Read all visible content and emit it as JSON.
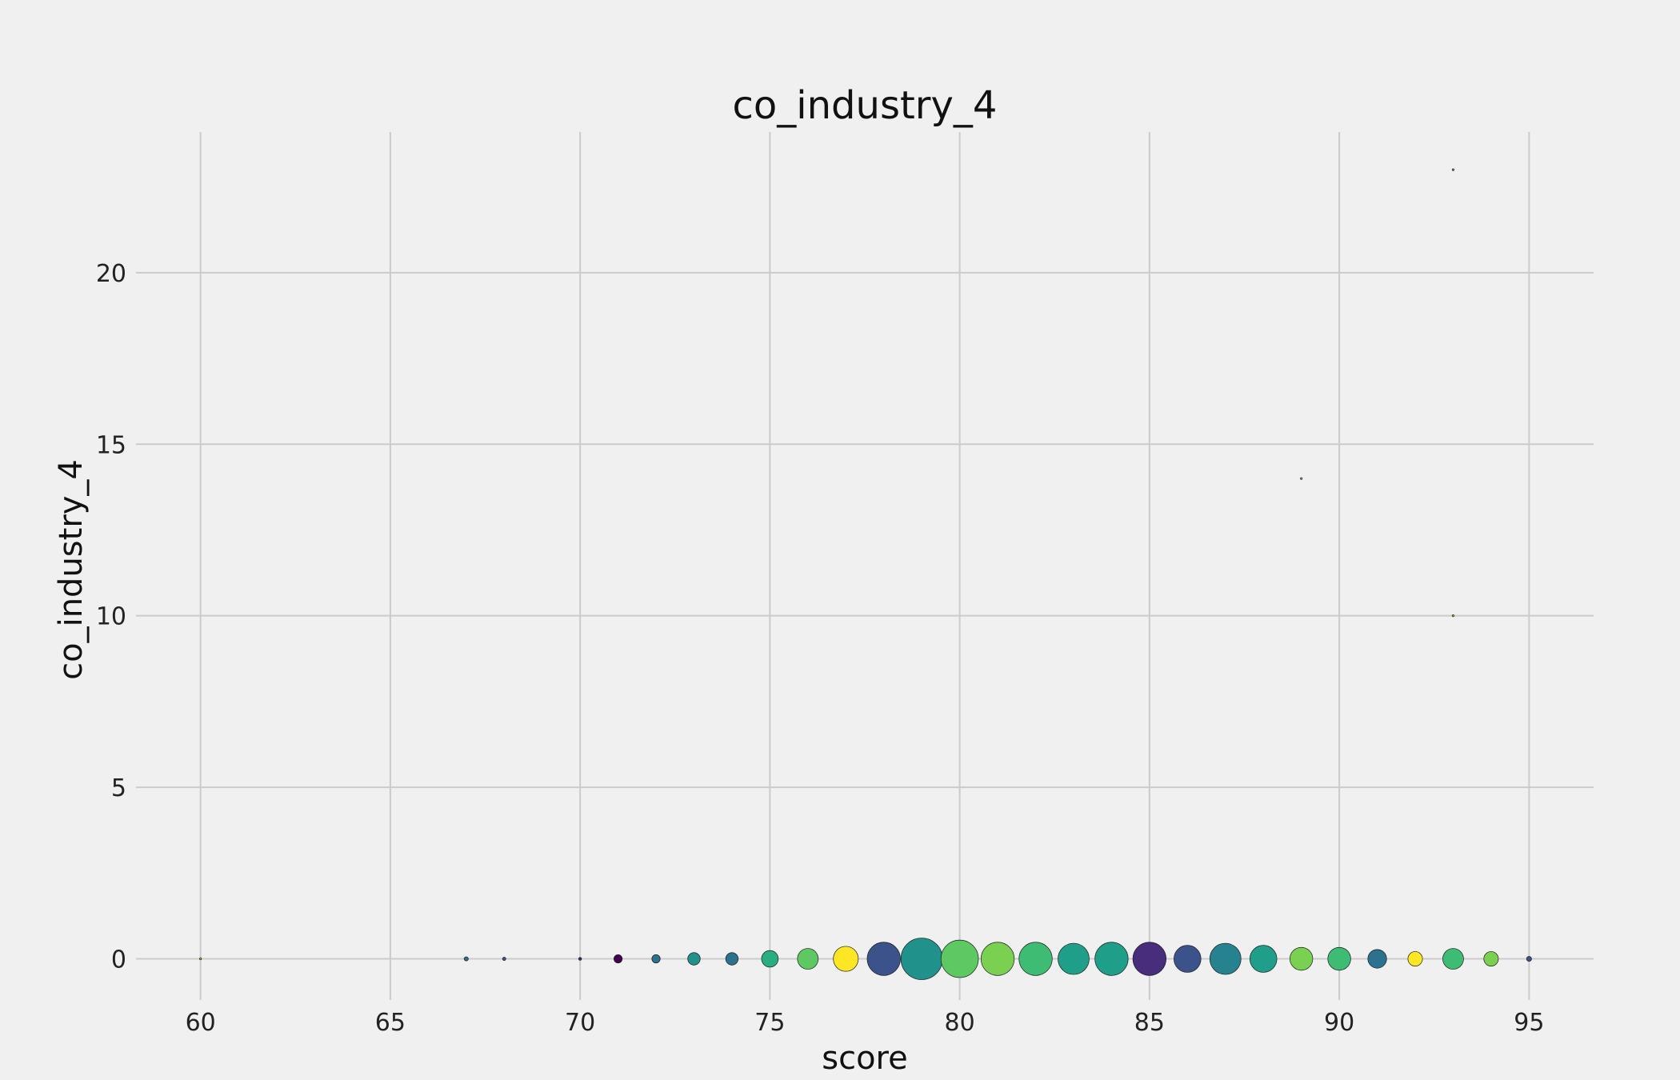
{
  "chart_data": {
    "type": "scatter",
    "title": "co_industry_4",
    "xlabel": "score",
    "ylabel": "co_industry_4",
    "xlim": [
      58.3,
      96.7
    ],
    "ylim": [
      -1.2,
      24.1
    ],
    "xticks": [
      60,
      65,
      70,
      75,
      80,
      85,
      90,
      95
    ],
    "yticks": [
      0,
      5,
      10,
      15,
      20
    ],
    "grid": true,
    "legend": "none",
    "points": [
      {
        "x": 60,
        "y": 0,
        "size": 0.2,
        "color": "#bddf26"
      },
      {
        "x": 67,
        "y": 0,
        "size": 1,
        "color": "#2c728e"
      },
      {
        "x": 68,
        "y": 0,
        "size": 0.8,
        "color": "#3b528b"
      },
      {
        "x": 70,
        "y": 0,
        "size": 0.7,
        "color": "#472d7b"
      },
      {
        "x": 71,
        "y": 0,
        "size": 2,
        "color": "#440154"
      },
      {
        "x": 72,
        "y": 0,
        "size": 2,
        "color": "#2c728e"
      },
      {
        "x": 73,
        "y": 0,
        "size": 3,
        "color": "#21918c"
      },
      {
        "x": 74,
        "y": 0,
        "size": 3,
        "color": "#2c728e"
      },
      {
        "x": 75,
        "y": 0,
        "size": 4,
        "color": "#28ae80"
      },
      {
        "x": 76,
        "y": 0,
        "size": 5,
        "color": "#5ec962"
      },
      {
        "x": 77,
        "y": 0,
        "size": 6,
        "color": "#fde725"
      },
      {
        "x": 78,
        "y": 0,
        "size": 8,
        "color": "#3b528b"
      },
      {
        "x": 79,
        "y": 0,
        "size": 10,
        "color": "#21918c"
      },
      {
        "x": 80,
        "y": 0,
        "size": 9,
        "color": "#5ec962"
      },
      {
        "x": 81,
        "y": 0,
        "size": 8,
        "color": "#7ad151"
      },
      {
        "x": 82,
        "y": 0,
        "size": 8,
        "color": "#3fbc73"
      },
      {
        "x": 83,
        "y": 0,
        "size": 7.5,
        "color": "#1f9e89"
      },
      {
        "x": 84,
        "y": 0,
        "size": 8,
        "color": "#1f9e89"
      },
      {
        "x": 85,
        "y": 0,
        "size": 8,
        "color": "#472d7b"
      },
      {
        "x": 86,
        "y": 0,
        "size": 6.5,
        "color": "#3b528b"
      },
      {
        "x": 87,
        "y": 0,
        "size": 7.5,
        "color": "#26828e"
      },
      {
        "x": 88,
        "y": 0,
        "size": 6.5,
        "color": "#1f9e89"
      },
      {
        "x": 89,
        "y": 0,
        "size": 5.5,
        "color": "#7ad151"
      },
      {
        "x": 90,
        "y": 0,
        "size": 5.5,
        "color": "#3fbc73"
      },
      {
        "x": 91,
        "y": 0,
        "size": 4.5,
        "color": "#2c728e"
      },
      {
        "x": 92,
        "y": 0,
        "size": 3.5,
        "color": "#fde725"
      },
      {
        "x": 93,
        "y": 0,
        "size": 5,
        "color": "#3fbc73"
      },
      {
        "x": 94,
        "y": 0,
        "size": 3.5,
        "color": "#7ad151"
      },
      {
        "x": 95,
        "y": 0,
        "size": 1.2,
        "color": "#3b528b"
      },
      {
        "x": 89,
        "y": 14,
        "size": 0.4,
        "color": "#7ad151"
      },
      {
        "x": 93,
        "y": 10,
        "size": 0.3,
        "color": "#bddf26"
      },
      {
        "x": 93,
        "y": 23,
        "size": 0.4,
        "color": "#5ec962"
      }
    ]
  }
}
